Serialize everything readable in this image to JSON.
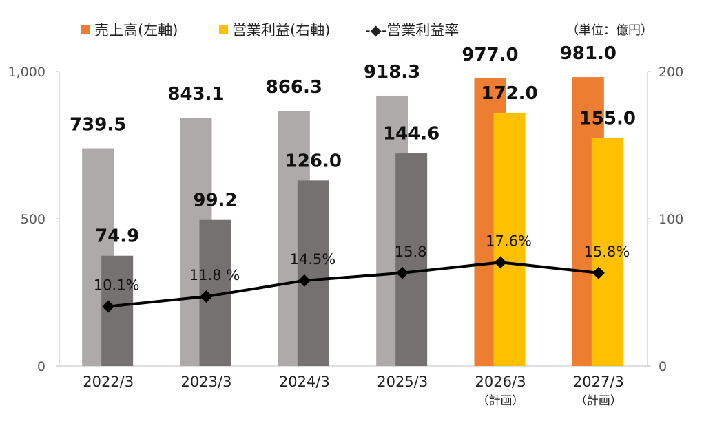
{
  "chart_data": {
    "type": "bar",
    "unit_label": "（単位：億円）",
    "categories": [
      "2022/3",
      "2023/3",
      "2024/3",
      "2025/3",
      "2026/3",
      "2027/3"
    ],
    "category_notes": [
      "",
      "",
      "",
      "",
      "（計画）",
      "（計画）"
    ],
    "series": [
      {
        "name": "売上高(左軸)",
        "axis": "left",
        "values": [
          739.5,
          843.1,
          866.3,
          918.3,
          977.0,
          981.0
        ],
        "labels": [
          "739.5",
          "843.1",
          "866.3",
          "918.3",
          "977.0",
          "981.0"
        ],
        "colors": [
          "#aeaaaa",
          "#aeaaaa",
          "#aeaaaa",
          "#aeaaaa",
          "#ed7d31",
          "#ed7d31"
        ]
      },
      {
        "name": "営業利益(右軸)",
        "axis": "right",
        "values": [
          74.9,
          99.2,
          126.0,
          144.6,
          172.0,
          155.0
        ],
        "labels": [
          "74.9",
          "99.2",
          "126.0",
          "144.6",
          "172.0",
          "155.0"
        ],
        "colors": [
          "#757171",
          "#757171",
          "#757171",
          "#757171",
          "#ffc000",
          "#ffc000"
        ]
      },
      {
        "name": "営業利益率",
        "type": "line",
        "values": [
          10.1,
          11.8,
          14.5,
          15.8,
          17.6,
          15.8
        ],
        "labels": [
          "10.1%",
          "11.8 %",
          "14.5%",
          "15.8",
          "17.6%",
          "15.8%"
        ],
        "color": "#000000"
      }
    ],
    "left_axis": {
      "ylim": [
        0,
        1000
      ],
      "ticks": [
        "0",
        "500",
        "1,000"
      ]
    },
    "right_axis": {
      "ylim": [
        0,
        200
      ],
      "ticks": [
        "0",
        "100",
        "200"
      ]
    },
    "line_scale": {
      "ylim": [
        0,
        50
      ]
    },
    "legend": {
      "placement": "top",
      "items": [
        {
          "label": "売上高(左軸)",
          "color": "#ed7d31"
        },
        {
          "label": "営業利益(右軸)",
          "color": "#ffc000"
        },
        {
          "label": "-◆-営業利益率",
          "color": "#000000"
        }
      ]
    }
  }
}
